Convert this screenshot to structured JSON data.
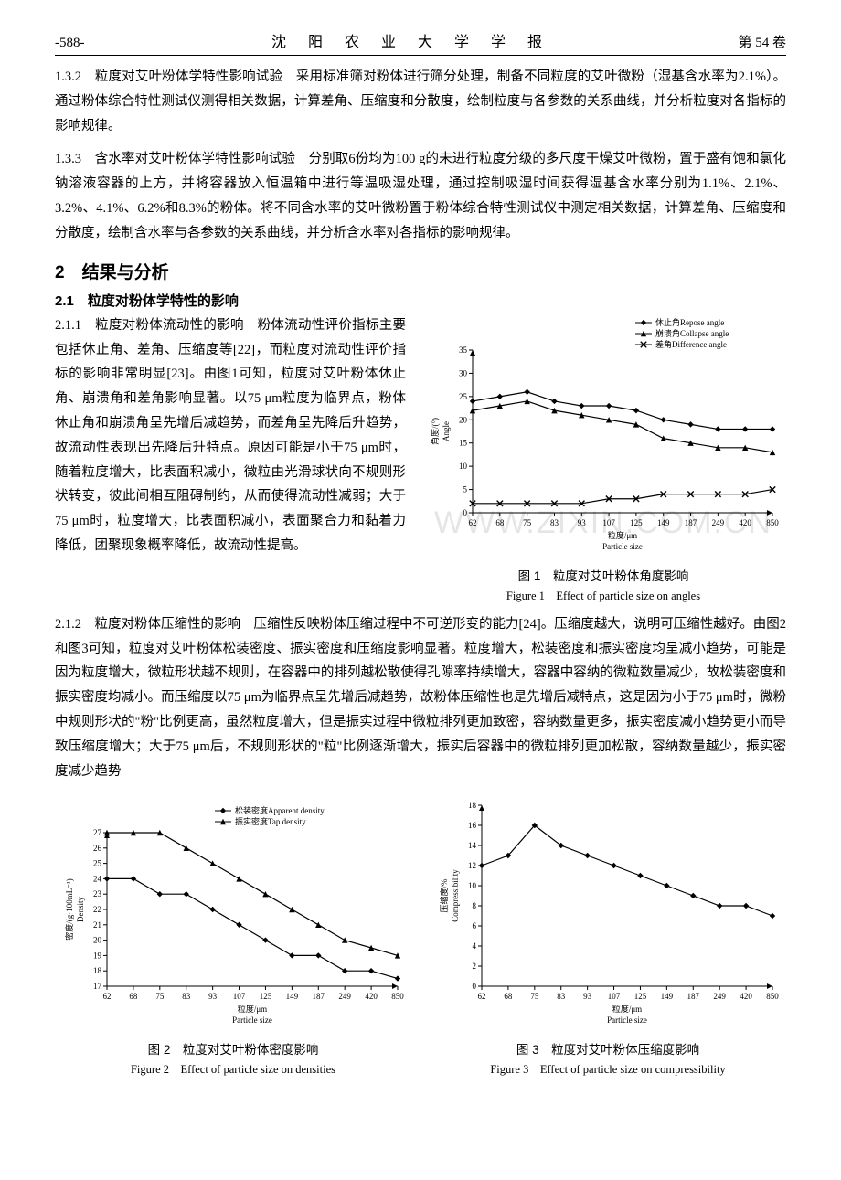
{
  "header": {
    "left": "-588-",
    "center": "沈  阳  农  业  大  学  学  报",
    "right": "第 54 卷"
  },
  "para1": "1.3.2　粒度对艾叶粉体学特性影响试验　采用标准筛对粉体进行筛分处理，制备不同粒度的艾叶微粉（湿基含水率为2.1%）。通过粉体综合特性测试仪测得相关数据，计算差角、压缩度和分散度，绘制粒度与各参数的关系曲线，并分析粒度对各指标的影响规律。",
  "para2": "1.3.3　含水率对艾叶粉体学特性影响试验　分别取6份均为100 g的未进行粒度分级的多尺度干燥艾叶微粉，置于盛有饱和氯化钠溶液容器的上方，并将容器放入恒温箱中进行等温吸湿处理，通过控制吸湿时间获得湿基含水率分别为1.1%、2.1%、3.2%、4.1%、6.2%和8.3%的粉体。将不同含水率的艾叶微粉置于粉体综合特性测试仪中测定相关数据，计算差角、压缩度和分散度，绘制含水率与各参数的关系曲线，并分析含水率对各指标的影响规律。",
  "sec2_title": "2　结果与分析",
  "sec21_title": "2.1　粒度对粉体学特性的影响",
  "para211": "2.1.1　粒度对粉体流动性的影响　粉体流动性评价指标主要包括休止角、差角、压缩度等[22]，而粒度对流动性评价指标的影响非常明显[23]。由图1可知，粒度对艾叶粉体休止角、崩溃角和差角影响显著。以75 μm粒度为临界点，粉体休止角和崩溃角呈先增后减趋势，而差角呈先降后升趋势，故流动性表现出先降后升特点。原因可能是小于75 μm时，随着粒度增大，比表面积减小，微粒由光滑球状向不规则形状转变，彼此间相互阻碍制约，从而使得流动性减弱；大于75 μm时，粒度增大，比表面积减小，表面聚合力和黏着力降低，团聚现象概率降低，故流动性提高。",
  "para212": "2.1.2　粒度对粉体压缩性的影响　压缩性反映粉体压缩过程中不可逆形变的能力[24]。压缩度越大，说明可压缩性越好。由图2和图3可知，粒度对艾叶粉体松装密度、振实密度和压缩度影响显著。粒度增大，松装密度和振实密度均呈减小趋势，可能是因为粒度增大，微粒形状越不规则，在容器中的排列越松散使得孔隙率持续增大，容器中容纳的微粒数量减少，故松装密度和振实密度均减小。而压缩度以75 μm为临界点呈先增后减趋势，故粉体压缩性也是先增后减特点，这是因为小于75 μm时，微粉中规则形状的\"粉\"比例更高，虽然粒度增大，但是振实过程中微粒排列更加致密，容纳数量更多，振实密度减小趋势更小而导致压缩度增大；大于75 μm后，不规则形状的\"粒\"比例逐渐增大，振实后容器中的微粒排列更加松散，容纳数量越少，振实密度减少趋势",
  "watermark": "WWW.ZIXIN.COM.CN",
  "figure1": {
    "type": "line",
    "caption_cn": "图 1　粒度对艾叶粉体角度影响",
    "caption_en": "Figure 1　Effect of particle size on angles",
    "legend": [
      {
        "label": "休止角Repose angle",
        "marker": "diamond",
        "color": "#000000"
      },
      {
        "label": "崩溃角Collapse angle",
        "marker": "triangle",
        "color": "#000000"
      },
      {
        "label": "差角Difference angle",
        "marker": "cross",
        "color": "#000000"
      }
    ],
    "x_categories": [
      "62",
      "68",
      "75",
      "83",
      "93",
      "107",
      "125",
      "149",
      "187",
      "249",
      "420",
      "850"
    ],
    "x_label_cn": "粒度/μm",
    "x_label_en": "Particle size",
    "y_label_cn": "角度/(°)",
    "y_label_en": "Angle",
    "ylim": [
      0,
      35
    ],
    "ytick_step": 5,
    "series": {
      "repose": [
        24,
        25,
        26,
        24,
        23,
        23,
        22,
        20,
        19,
        18,
        18,
        18
      ],
      "collapse": [
        22,
        23,
        24,
        22,
        21,
        20,
        19,
        16,
        15,
        14,
        14,
        13
      ],
      "diff": [
        2,
        2,
        2,
        2,
        2,
        3,
        3,
        4,
        4,
        4,
        4,
        5
      ]
    },
    "background_color": "#ffffff",
    "axis_color": "#000000",
    "line_color": "#000000",
    "font_size_axis": 9,
    "font_size_legend": 9
  },
  "figure2": {
    "type": "line",
    "caption_cn": "图 2　粒度对艾叶粉体密度影响",
    "caption_en": "Figure 2　Effect of particle size on densities",
    "legend": [
      {
        "label": "松装密度Apparent density",
        "marker": "diamond",
        "color": "#000000"
      },
      {
        "label": "振实密度Tap density",
        "marker": "triangle",
        "color": "#000000"
      }
    ],
    "x_categories": [
      "62",
      "68",
      "75",
      "83",
      "93",
      "107",
      "125",
      "149",
      "187",
      "249",
      "420",
      "850"
    ],
    "x_label_cn": "粒度/μm",
    "x_label_en": "Particle size",
    "y_label_cn": "密度/(g·100mL⁻¹)",
    "y_label_en": "Density",
    "ylim": [
      17,
      27
    ],
    "ytick_step": 1,
    "series": {
      "apparent": [
        24,
        24,
        23,
        23,
        22,
        21,
        20,
        19,
        19,
        18,
        18,
        17.5
      ],
      "tap": [
        27,
        27,
        27,
        26,
        25,
        24,
        23,
        22,
        21,
        20,
        19.5,
        19
      ]
    },
    "background_color": "#ffffff",
    "axis_color": "#000000",
    "line_color": "#000000",
    "font_size_axis": 9,
    "font_size_legend": 9
  },
  "figure3": {
    "type": "line",
    "caption_cn": "图 3　粒度对艾叶粉体压缩度影响",
    "caption_en": "Figure 3　Effect of particle size on compressibility",
    "legend": [],
    "x_categories": [
      "62",
      "68",
      "75",
      "83",
      "93",
      "107",
      "125",
      "149",
      "187",
      "249",
      "420",
      "850"
    ],
    "x_label_cn": "粒度/μm",
    "x_label_en": "Particle size",
    "y_label_cn": "压缩度/%",
    "y_label_en": "Compressibility",
    "ylim": [
      0,
      18
    ],
    "ytick_step": 2,
    "series": {
      "comp": [
        12,
        13,
        16,
        14,
        13,
        12,
        11,
        10,
        9,
        8,
        8,
        7
      ]
    },
    "marker": "diamond",
    "background_color": "#ffffff",
    "axis_color": "#000000",
    "line_color": "#000000",
    "font_size_axis": 9
  }
}
